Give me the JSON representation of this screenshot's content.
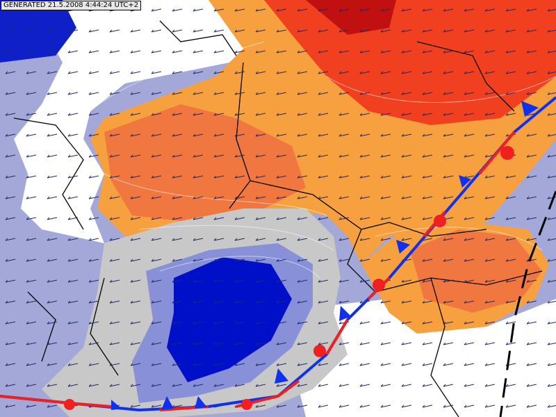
{
  "header": {
    "timestamp": "GENERATED 21.5.2008 4:44:24 UTC+2"
  }
}
